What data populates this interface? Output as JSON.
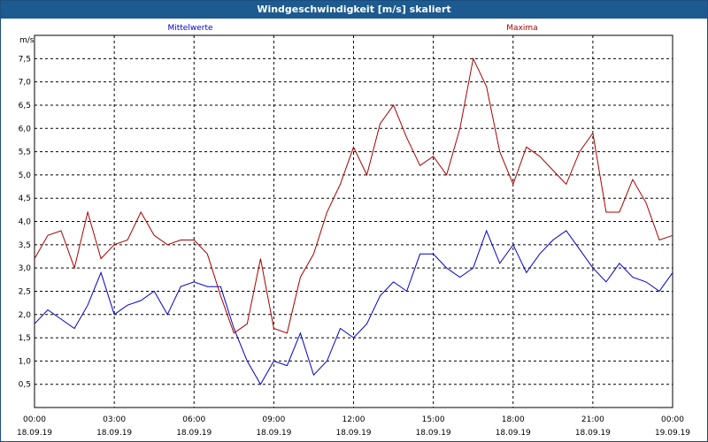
{
  "window": {
    "title": "Windgeschwindigkeit [m/s] skaliert"
  },
  "chart_data": {
    "type": "line",
    "title": "Windgeschwindigkeit [m/s] skaliert",
    "ylabel": "m/s",
    "xlabel": "",
    "ylim": [
      0,
      8
    ],
    "xlim": [
      0,
      24
    ],
    "grid": true,
    "y_ticks": [
      "0,5",
      "1,0",
      "1,5",
      "2,0",
      "2,5",
      "3,0",
      "3,5",
      "4,0",
      "4,5",
      "5,0",
      "5,5",
      "6,0",
      "6,5",
      "7,0",
      "7,5"
    ],
    "x_ticks": [
      {
        "time": "00:00",
        "date": "18.09.19"
      },
      {
        "time": "03:00",
        "date": "18.09.19"
      },
      {
        "time": "06:00",
        "date": "18.09.19"
      },
      {
        "time": "09:00",
        "date": "18.09.19"
      },
      {
        "time": "12:00",
        "date": "18.09.19"
      },
      {
        "time": "15:00",
        "date": "18.09.19"
      },
      {
        "time": "18:00",
        "date": "18.09.19"
      },
      {
        "time": "21:00",
        "date": "18.09.19"
      },
      {
        "time": "00:00",
        "date": "19.09.19"
      }
    ],
    "x_unit": "hours since 18.09.19 00:00",
    "series": [
      {
        "name": "Mittelwerte",
        "color": "#0000cc",
        "x": [
          0,
          0.5,
          1,
          1.5,
          2,
          2.5,
          3,
          3.5,
          4,
          4.5,
          5,
          5.5,
          6,
          6.5,
          7,
          7.5,
          8,
          8.5,
          9,
          9.5,
          10,
          10.5,
          11,
          11.5,
          12,
          12.5,
          13,
          13.5,
          14,
          14.5,
          15,
          15.5,
          16,
          16.5,
          17,
          17.5,
          18,
          18.5,
          19,
          19.5,
          20,
          20.5,
          21,
          21.5,
          22,
          22.5,
          23,
          23.5,
          24
        ],
        "values": [
          1.8,
          2.1,
          1.9,
          1.7,
          2.2,
          2.9,
          2.0,
          2.2,
          2.3,
          2.5,
          2.0,
          2.6,
          2.7,
          2.6,
          2.6,
          1.7,
          1.0,
          0.5,
          1.0,
          0.9,
          1.6,
          0.7,
          1.0,
          1.7,
          1.5,
          1.8,
          2.4,
          2.7,
          2.5,
          3.3,
          3.3,
          3.0,
          2.8,
          3.0,
          3.8,
          3.1,
          3.5,
          2.9,
          3.3,
          3.6,
          3.8,
          3.4,
          3.0,
          2.7,
          3.1,
          2.8,
          2.7,
          2.5,
          2.9
        ]
      },
      {
        "name": "Maxima",
        "color": "#aa0000",
        "x": [
          0,
          0.5,
          1,
          1.5,
          2,
          2.5,
          3,
          3.5,
          4,
          4.5,
          5,
          5.5,
          6,
          6.5,
          7,
          7.5,
          8,
          8.5,
          9,
          9.5,
          10,
          10.5,
          11,
          11.5,
          12,
          12.5,
          13,
          13.5,
          14,
          14.5,
          15,
          15.5,
          16,
          16.5,
          17,
          17.5,
          18,
          18.5,
          19,
          19.5,
          20,
          20.5,
          21,
          21.5,
          22,
          22.5,
          23,
          23.5,
          24
        ],
        "values": [
          3.2,
          3.7,
          3.8,
          3.0,
          4.2,
          3.2,
          3.5,
          3.6,
          4.2,
          3.7,
          3.5,
          3.6,
          3.6,
          3.3,
          2.4,
          1.6,
          1.8,
          3.2,
          1.7,
          1.6,
          2.8,
          3.3,
          4.2,
          4.8,
          5.6,
          5.0,
          6.1,
          6.5,
          5.8,
          5.2,
          5.4,
          5.0,
          6.0,
          7.5,
          6.9,
          5.5,
          4.8,
          5.6,
          5.4,
          5.1,
          4.8,
          5.5,
          5.9,
          4.2,
          4.2,
          4.9,
          4.4,
          3.6,
          3.7
        ]
      }
    ]
  }
}
